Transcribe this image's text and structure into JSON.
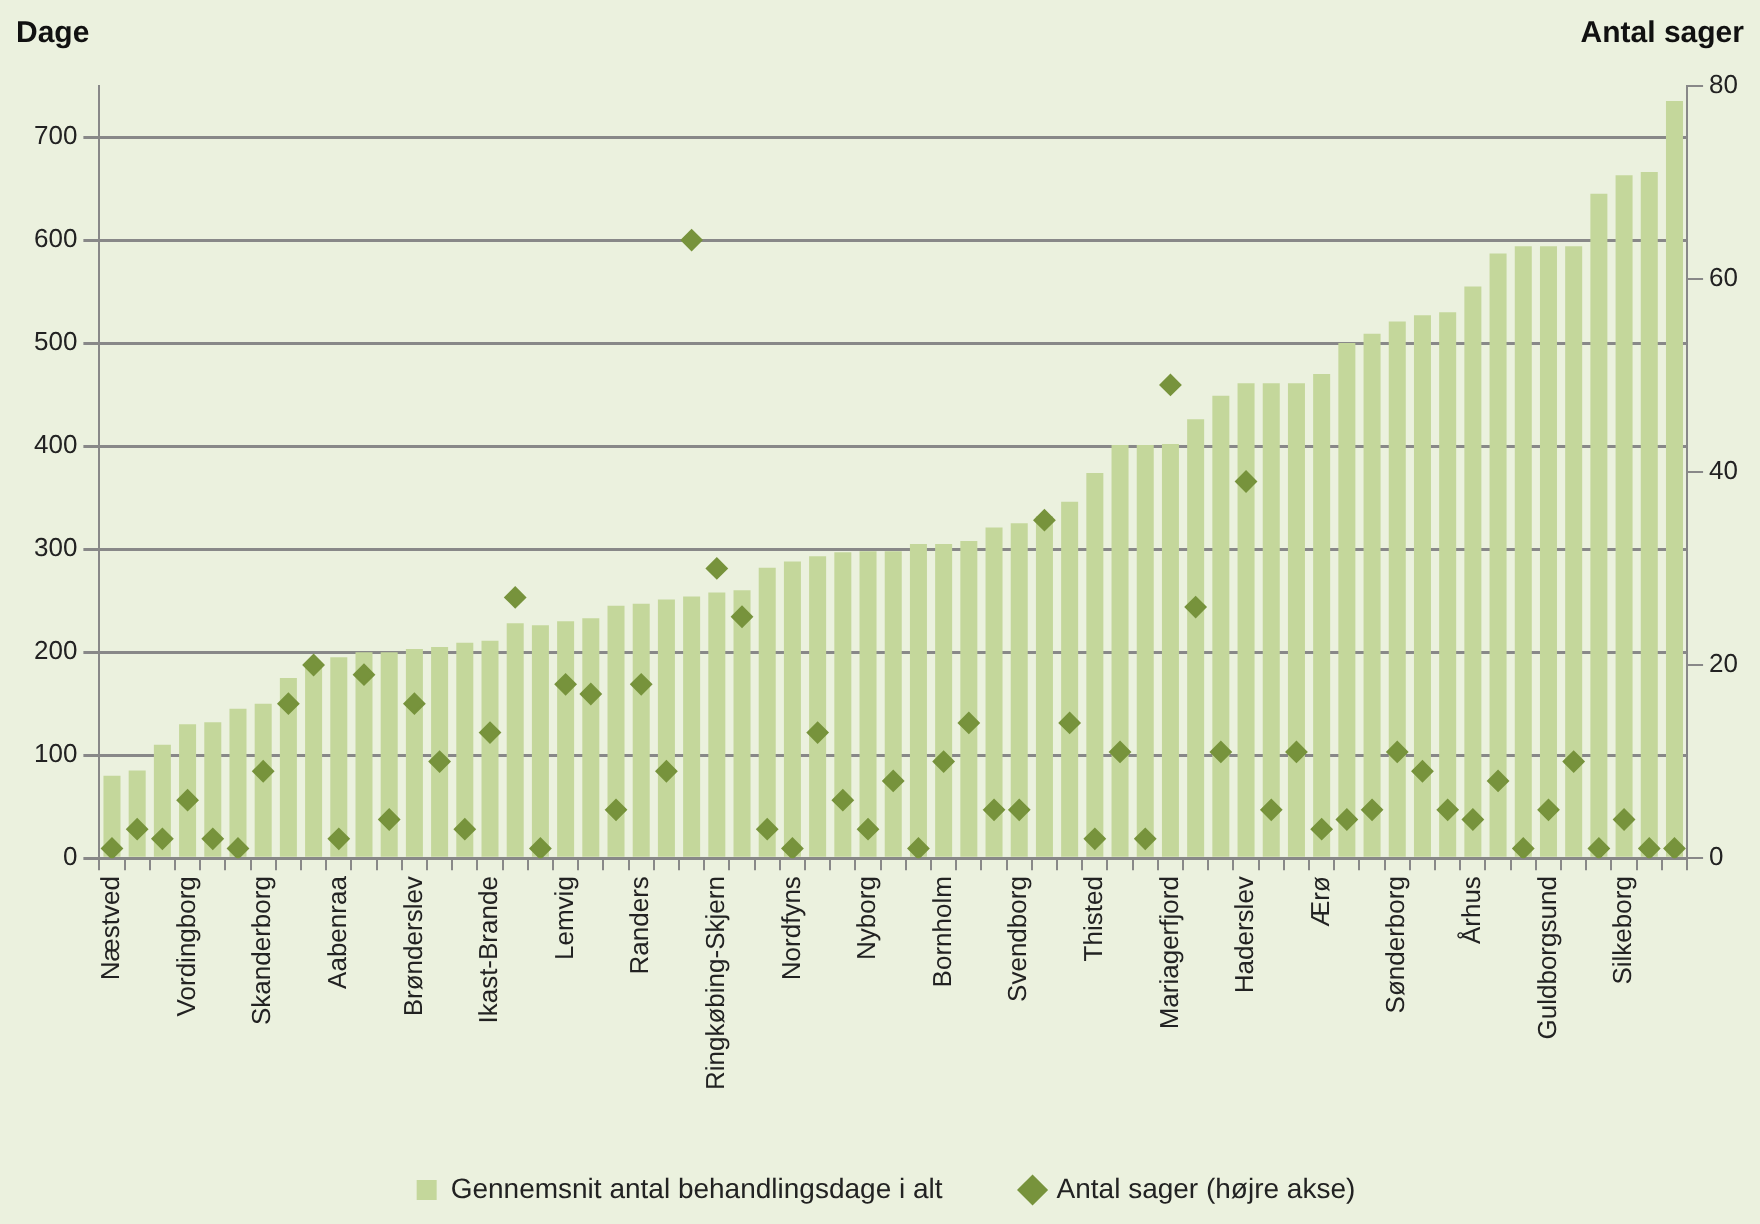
{
  "chart_data": {
    "type": "bar",
    "ylabel": "Dage",
    "y2label": "Antal sager",
    "categories": [
      "Næstved",
      null,
      null,
      "Vordingborg",
      null,
      null,
      "Skanderborg",
      null,
      null,
      "Aabenraa",
      null,
      null,
      "Brønderslev",
      null,
      null,
      "Ikast-Brande",
      null,
      null,
      "Lemvig",
      null,
      null,
      "Randers",
      null,
      null,
      "Ringkøbing-Skjern",
      null,
      null,
      "Nordfyns",
      null,
      null,
      "Nyborg",
      null,
      null,
      "Bornholm",
      null,
      null,
      "Svendborg",
      null,
      null,
      "Thisted",
      null,
      null,
      "Mariagerfjord",
      null,
      null,
      "Haderslev",
      null,
      null,
      "Ærø",
      null,
      null,
      "Sønderborg",
      null,
      null,
      "Århus",
      null,
      null,
      "Guldborgsund",
      null,
      null,
      "Silkeborg",
      null,
      null
    ],
    "series": [
      {
        "name": "Gennemsnit antal behandlingsdage i alt",
        "color": "#c4d79b",
        "values": [
          80,
          85,
          110,
          130,
          132,
          145,
          150,
          175,
          190,
          195,
          200,
          200,
          203,
          205,
          209,
          211,
          228,
          226,
          230,
          233,
          245,
          247,
          251,
          254,
          258,
          260,
          282,
          288,
          293,
          297,
          298,
          298,
          305,
          305,
          308,
          321,
          325,
          332,
          346,
          374,
          401,
          401,
          402,
          426,
          449,
          461,
          461,
          461,
          470,
          500,
          509,
          521,
          527,
          530,
          555,
          587,
          594,
          594,
          594,
          645,
          663,
          666,
          735
        ]
      },
      {
        "name": "Antal sager (højre akse)",
        "type": "scatter",
        "axis": "y2",
        "color": "#77933c",
        "values": [
          1,
          3,
          2,
          6,
          2,
          1,
          9,
          16,
          20,
          2,
          19,
          4,
          16,
          10,
          3,
          13,
          27,
          1,
          18,
          17,
          5,
          18,
          9,
          64,
          30,
          25,
          3,
          1,
          13,
          6,
          3,
          8,
          1,
          10,
          14,
          5,
          5,
          35,
          14,
          2,
          11,
          2,
          49,
          26,
          11,
          39,
          5,
          11,
          3,
          4,
          5,
          11,
          9,
          5,
          4,
          8,
          1,
          5,
          10,
          1,
          4,
          1,
          1
        ]
      }
    ],
    "ylim": [
      0,
      750
    ],
    "yticks": [
      0,
      100,
      200,
      300,
      400,
      500,
      600,
      700
    ],
    "y2lim": [
      0,
      80
    ],
    "y2ticks": [
      0,
      20,
      40,
      60,
      80
    ],
    "grid": "y",
    "legend": "bottom",
    "marker": "diamond"
  }
}
